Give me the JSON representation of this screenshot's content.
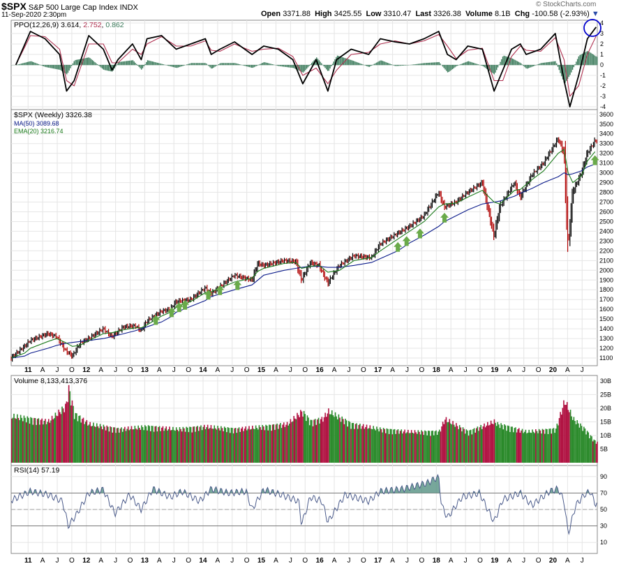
{
  "header": {
    "symbol": "$SPX",
    "name": "S&P 500 Large Cap Index",
    "exchange": "INDX",
    "datetime": "11-Sep-2020 2:30pm",
    "open_label": "Open",
    "open": "3371.88",
    "high_label": "High",
    "high": "3425.55",
    "low_label": "Low",
    "low": "3310.47",
    "last_label": "Last",
    "last": "3326.38",
    "volume_label": "Volume",
    "volume": "8.1B",
    "chg_label": "Chg",
    "chg": "-100.58 (-2.93%)",
    "watermark": "© StockCharts.com"
  },
  "colors": {
    "ppo_line": "#000000",
    "ppo_signal": "#b03050",
    "ppo_hist": "#3a7a5a",
    "price_bar": "#000000",
    "price_down": "#b00000",
    "ma50": "#0a1a8a",
    "ema20": "#1a7a1a",
    "vol_up": "#2a8a2a",
    "vol_down": "#b01040",
    "rsi_line": "#4a5a8a",
    "rsi_fill": "#4a8a7a",
    "arrow": "#6aaa4a",
    "circle": "#0000cc"
  },
  "x_labels": [
    "11",
    "A",
    "J",
    "O",
    "12",
    "A",
    "J",
    "O",
    "13",
    "A",
    "J",
    "O",
    "14",
    "A",
    "J",
    "O",
    "15",
    "A",
    "J",
    "O",
    "16",
    "A",
    "J",
    "O",
    "17",
    "A",
    "J",
    "O",
    "18",
    "A",
    "J",
    "O",
    "19",
    "A",
    "J",
    "O",
    "20",
    "A",
    "J"
  ],
  "chart_data": [
    {
      "type": "line",
      "panel": "ppo",
      "label": "PPO(12,26,9)",
      "values_text": [
        "3.614",
        "2.752",
        "0.862"
      ],
      "ylim": [
        -4,
        4
      ],
      "y_ticks": [
        4,
        3,
        2,
        1,
        0,
        -1,
        -2,
        -3,
        -4
      ],
      "x": [
        2010.75,
        2011.0,
        2011.25,
        2011.5,
        2011.62,
        2011.75,
        2012.0,
        2012.25,
        2012.4,
        2012.5,
        2012.75,
        2012.9,
        2013.0,
        2013.25,
        2013.5,
        2013.75,
        2014.0,
        2014.1,
        2014.25,
        2014.5,
        2014.8,
        2015.0,
        2015.25,
        2015.5,
        2015.67,
        2015.9,
        2016.1,
        2016.25,
        2016.5,
        2016.8,
        2017.0,
        2017.25,
        2017.5,
        2017.75,
        2018.0,
        2018.15,
        2018.3,
        2018.5,
        2018.75,
        2018.95,
        2019.1,
        2019.25,
        2019.4,
        2019.5,
        2019.75,
        2020.0,
        2020.15,
        2020.25,
        2020.4,
        2020.55,
        2020.7
      ],
      "series": [
        {
          "name": "PPO",
          "values": [
            0,
            3.2,
            2.5,
            1.0,
            -2.5,
            -1.5,
            2.8,
            1.5,
            -0.5,
            0.5,
            2.0,
            0.5,
            2.5,
            2.8,
            1.5,
            2.0,
            2.5,
            1.0,
            1.5,
            2.2,
            1.0,
            1.8,
            1.5,
            0.5,
            -1.8,
            0.5,
            -2.5,
            0.5,
            1.5,
            1.0,
            2.5,
            2.2,
            2.0,
            2.5,
            3.2,
            1.0,
            0.5,
            1.8,
            1.5,
            -2.5,
            -0.5,
            1.5,
            2.0,
            1.0,
            1.5,
            3.0,
            -1.5,
            -4.0,
            -1.0,
            2.5,
            3.614
          ]
        },
        {
          "name": "Signal",
          "values": [
            0,
            2.8,
            2.7,
            1.5,
            -1.5,
            -2.0,
            2.0,
            2.0,
            0.2,
            0.2,
            1.5,
            1.0,
            2.0,
            2.7,
            1.8,
            1.8,
            2.3,
            1.4,
            1.3,
            2.0,
            1.3,
            1.5,
            1.6,
            0.8,
            -1.0,
            -0.3,
            -1.8,
            -0.5,
            1.0,
            1.2,
            2.0,
            2.3,
            2.0,
            2.3,
            2.9,
            1.8,
            0.6,
            1.4,
            1.6,
            -1.5,
            -1.5,
            0.8,
            1.8,
            1.4,
            1.3,
            2.6,
            0.5,
            -3.0,
            -2.0,
            1.0,
            2.752
          ]
        }
      ]
    },
    {
      "type": "bar",
      "panel": "price",
      "label": "$SPX (Weekly) 3326.38",
      "title": "$SPX (Weekly)",
      "last": 3326.38,
      "ylim": [
        1050,
        3620
      ],
      "y_ticks": [
        1100,
        1200,
        1300,
        1400,
        1500,
        1600,
        1700,
        1800,
        1900,
        2000,
        2100,
        2200,
        2300,
        2400,
        2500,
        2600,
        2700,
        2800,
        2900,
        3000,
        3100,
        3200,
        3300,
        3400,
        3500,
        3600
      ],
      "x": [
        2010.67,
        2010.9,
        2011.0,
        2011.3,
        2011.45,
        2011.6,
        2011.72,
        2011.85,
        2012.0,
        2012.25,
        2012.4,
        2012.6,
        2012.8,
        2012.9,
        2013.0,
        2013.25,
        2013.4,
        2013.5,
        2013.75,
        2014.0,
        2014.1,
        2014.5,
        2014.8,
        2014.9,
        2015.0,
        2015.35,
        2015.55,
        2015.65,
        2015.8,
        2015.95,
        2016.1,
        2016.3,
        2016.55,
        2016.85,
        2017.0,
        2017.3,
        2017.5,
        2017.75,
        2018.0,
        2018.1,
        2018.3,
        2018.5,
        2018.75,
        2018.95,
        2019.05,
        2019.3,
        2019.4,
        2019.6,
        2019.8,
        2020.05,
        2020.15,
        2020.22,
        2020.3,
        2020.45,
        2020.55,
        2020.68
      ],
      "values": [
        1100,
        1220,
        1280,
        1350,
        1320,
        1180,
        1120,
        1250,
        1300,
        1400,
        1320,
        1420,
        1430,
        1380,
        1480,
        1580,
        1600,
        1680,
        1700,
        1820,
        1760,
        1950,
        1900,
        2070,
        2050,
        2100,
        2090,
        1900,
        2080,
        2050,
        1870,
        2050,
        2150,
        2130,
        2270,
        2380,
        2450,
        2560,
        2800,
        2650,
        2700,
        2800,
        2900,
        2350,
        2650,
        2900,
        2750,
        2980,
        3100,
        3350,
        3200,
        2240,
        2800,
        3000,
        3200,
        3326.38
      ],
      "series": [
        {
          "name": "MA(50)",
          "value_text": "3089.68",
          "values": [
            1100,
            1120,
            1150,
            1200,
            1230,
            1250,
            1260,
            1270,
            1280,
            1300,
            1320,
            1350,
            1380,
            1400,
            1420,
            1470,
            1520,
            1570,
            1630,
            1690,
            1730,
            1800,
            1850,
            1900,
            1950,
            2000,
            2020,
            2030,
            2040,
            2040,
            2030,
            2030,
            2050,
            2080,
            2120,
            2200,
            2280,
            2360,
            2450,
            2500,
            2560,
            2620,
            2680,
            2700,
            2710,
            2760,
            2790,
            2840,
            2900,
            2960,
            3000,
            2980,
            2990,
            3020,
            3060,
            3089.68
          ]
        },
        {
          "name": "EMA(20)",
          "value_text": "3216.74",
          "values": [
            1100,
            1150,
            1200,
            1270,
            1300,
            1260,
            1220,
            1230,
            1280,
            1350,
            1360,
            1390,
            1410,
            1410,
            1440,
            1530,
            1570,
            1620,
            1680,
            1770,
            1780,
            1880,
            1920,
            1990,
            2020,
            2070,
            2080,
            2020,
            2040,
            2050,
            1980,
            2000,
            2100,
            2130,
            2200,
            2320,
            2400,
            2500,
            2650,
            2680,
            2690,
            2750,
            2820,
            2700,
            2680,
            2820,
            2830,
            2930,
            3020,
            3200,
            3240,
            3000,
            2900,
            2970,
            3120,
            3216.74
          ]
        }
      ]
    },
    {
      "type": "bar",
      "panel": "volume",
      "label": "Volume 8,133,413,376",
      "ylim": [
        0,
        31
      ],
      "y_ticks": [
        5,
        10,
        15,
        20,
        25,
        30
      ],
      "y_tick_labels": [
        "5B",
        "10B",
        "15B",
        "20B",
        "25B",
        "30B"
      ],
      "x": [
        2010.7,
        2011.0,
        2011.3,
        2011.6,
        2011.65,
        2011.75,
        2012.0,
        2012.5,
        2013.0,
        2013.5,
        2014.0,
        2014.5,
        2015.0,
        2015.4,
        2015.65,
        2015.8,
        2016.0,
        2016.1,
        2016.5,
        2017.0,
        2017.5,
        2018.0,
        2018.1,
        2018.5,
        2018.95,
        2019.0,
        2019.5,
        2020.0,
        2020.15,
        2020.2,
        2020.3,
        2020.5,
        2020.68
      ],
      "values": [
        18,
        17,
        16,
        22,
        29,
        19,
        15,
        13,
        14,
        13,
        14,
        13,
        14,
        15,
        20,
        16,
        17,
        20,
        15,
        13,
        12,
        12,
        17,
        12,
        16,
        15,
        12,
        13,
        24,
        22,
        17,
        13,
        8.13
      ]
    },
    {
      "type": "line",
      "panel": "rsi",
      "label": "RSI(14)",
      "value_text": "57.19",
      "ylim": [
        0,
        100
      ],
      "y_ticks": [
        10,
        30,
        50,
        70,
        90
      ],
      "x": [
        2010.7,
        2011.0,
        2011.3,
        2011.55,
        2011.65,
        2011.8,
        2012.0,
        2012.25,
        2012.45,
        2012.7,
        2012.9,
        2013.1,
        2013.4,
        2013.6,
        2013.9,
        2014.1,
        2014.4,
        2014.7,
        2014.8,
        2015.0,
        2015.3,
        2015.6,
        2015.65,
        2015.8,
        2016.0,
        2016.1,
        2016.4,
        2016.8,
        2017.0,
        2017.4,
        2017.8,
        2018.0,
        2018.05,
        2018.15,
        2018.4,
        2018.7,
        2018.95,
        2019.1,
        2019.4,
        2019.6,
        2019.9,
        2020.05,
        2020.15,
        2020.22,
        2020.35,
        2020.5,
        2020.6,
        2020.68
      ],
      "values": [
        62,
        72,
        68,
        60,
        30,
        45,
        70,
        74,
        45,
        68,
        50,
        75,
        65,
        72,
        60,
        75,
        70,
        72,
        50,
        74,
        68,
        60,
        32,
        65,
        60,
        35,
        68,
        60,
        72,
        75,
        82,
        90,
        55,
        40,
        65,
        70,
        35,
        62,
        70,
        55,
        72,
        75,
        60,
        20,
        55,
        68,
        72,
        57.19
      ],
      "overbought": 70,
      "oversold": 30,
      "midline": 50
    }
  ]
}
